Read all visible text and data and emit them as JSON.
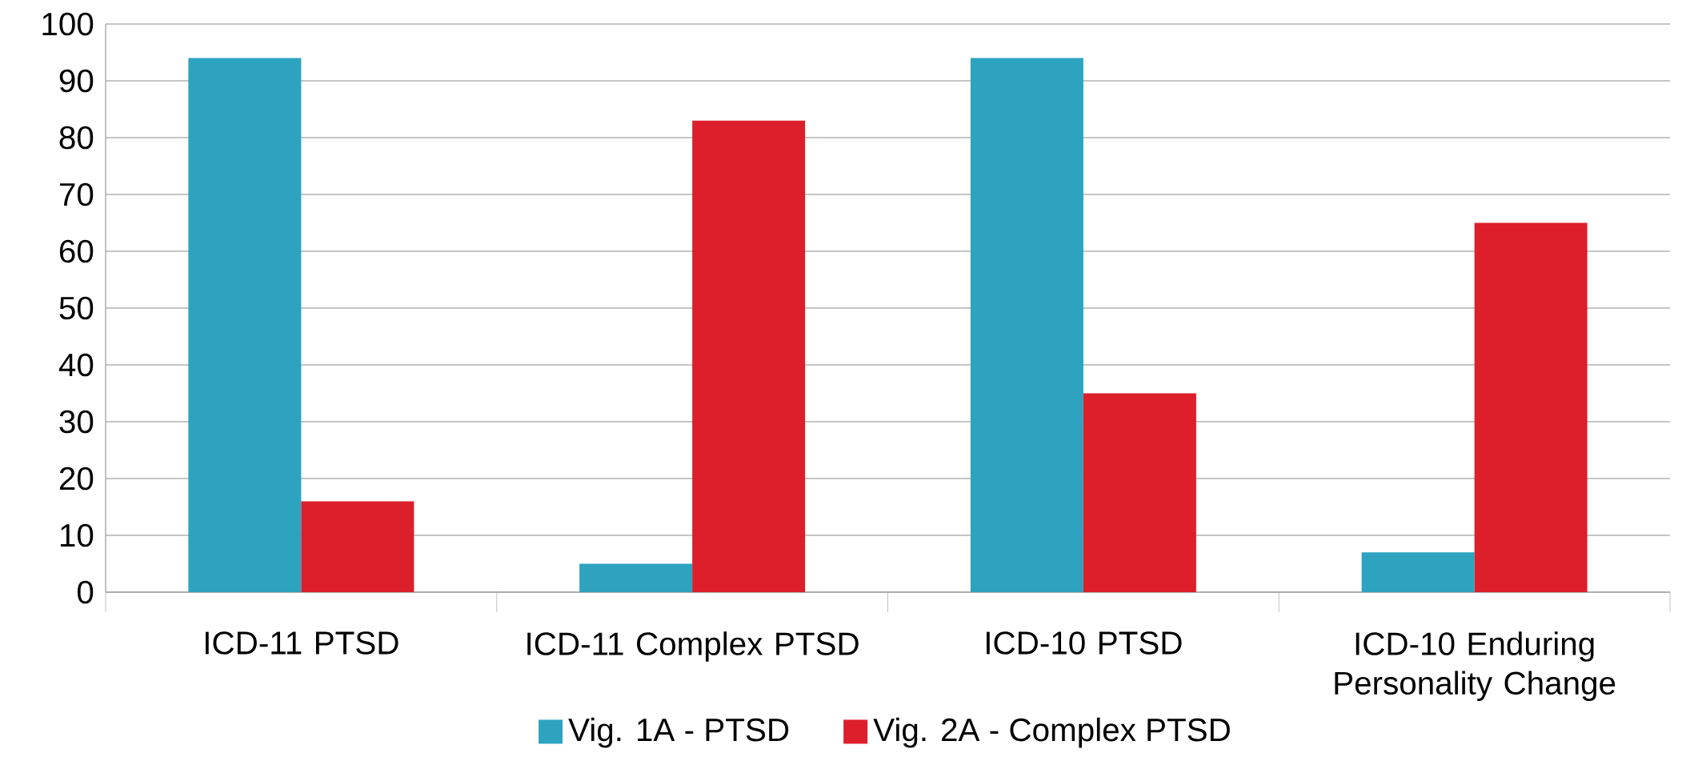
{
  "chart_data": {
    "type": "bar",
    "categories": [
      "ICD-11 PTSD",
      "ICD-11 Complex PTSD",
      "ICD-10 PTSD",
      "ICD-10 Enduring Personality Change"
    ],
    "series": [
      {
        "name": "Vig. 1A - PTSD",
        "color": "#2da3c0",
        "values": [
          94,
          5,
          94,
          7
        ]
      },
      {
        "name": "Vig. 2A - Complex PTSD",
        "color": "#dc1f2b",
        "values": [
          16,
          83,
          35,
          65
        ]
      }
    ],
    "ylim": [
      0,
      100
    ],
    "yticks": [
      0,
      10,
      20,
      30,
      40,
      50,
      60,
      70,
      80,
      90,
      100
    ],
    "grid": "y",
    "legend": "bottom"
  }
}
